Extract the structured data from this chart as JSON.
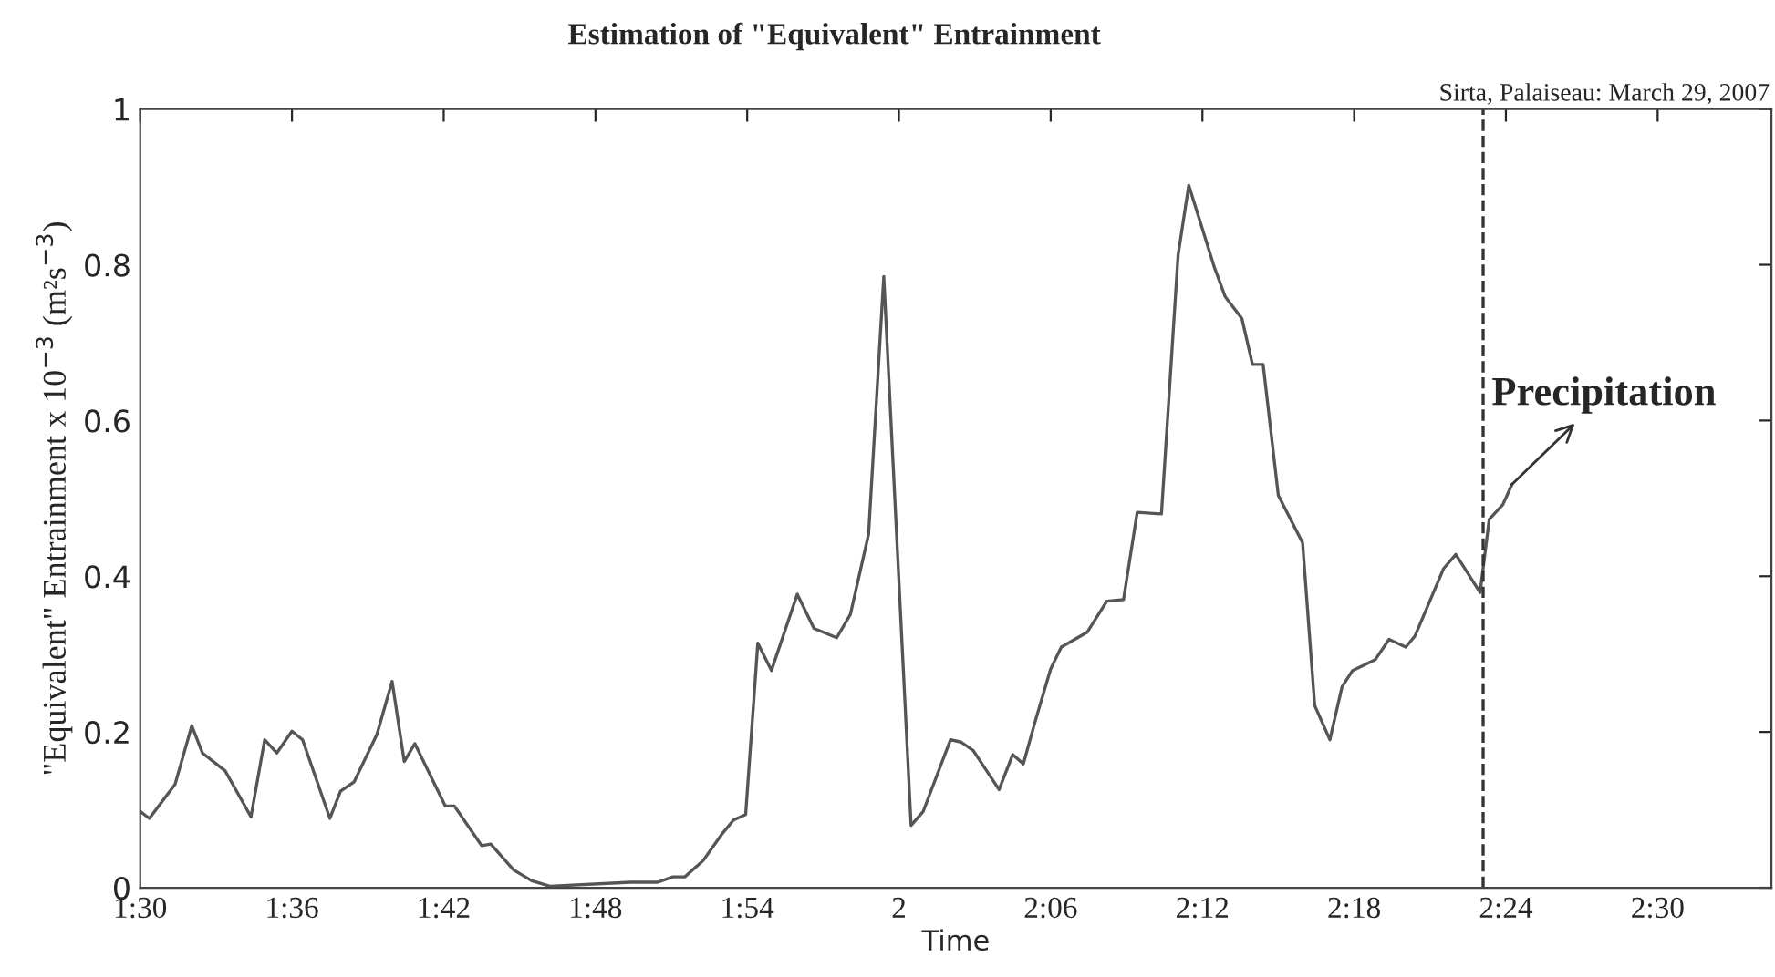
{
  "chart_data": {
    "type": "line",
    "title": "Estimation of \"Equivalent\" Entrainment",
    "subtitle": "Sirta, Palaiseau: March 29, 2007",
    "xlabel": "Time",
    "ylabel": "\"Equivalent\" Entrainment x 10$^{−3}$ (m²s$^{−3}$)",
    "series": [
      {
        "color": "#555555",
        "x": [
          1.5,
          1.506,
          1.523,
          1.534,
          1.541,
          1.556,
          1.573,
          1.582,
          1.59,
          1.6,
          1.607,
          1.625,
          1.632,
          1.641,
          1.656,
          1.666,
          1.674,
          1.681,
          1.701,
          1.707,
          1.725,
          1.731,
          1.746,
          1.758,
          1.77,
          1.823,
          1.841,
          1.851,
          1.859,
          1.871,
          1.883,
          1.891,
          1.899,
          1.907,
          1.916,
          1.933,
          1.944,
          1.959,
          1.968,
          1.98,
          1.99,
          2.008,
          2.016,
          2.034,
          2.041,
          2.049,
          2.066,
          2.075,
          2.082,
          2.09,
          2.1,
          2.107,
          2.124,
          2.137,
          2.148,
          2.157,
          2.173,
          2.184,
          2.191,
          2.208,
          2.215,
          2.226,
          2.233,
          2.24,
          2.25,
          2.266,
          2.274,
          2.284,
          2.292,
          2.299,
          2.314,
          2.323,
          2.334,
          2.34,
          2.359,
          2.367,
          2.383,
          2.389,
          2.398,
          2.404
        ],
        "values": [
          0.098,
          0.089,
          0.133,
          0.208,
          0.173,
          0.15,
          0.091,
          0.19,
          0.173,
          0.201,
          0.19,
          0.089,
          0.124,
          0.136,
          0.197,
          0.265,
          0.162,
          0.185,
          0.105,
          0.105,
          0.054,
          0.056,
          0.023,
          0.009,
          0.002,
          0.007,
          0.007,
          0.014,
          0.014,
          0.035,
          0.068,
          0.087,
          0.094,
          0.314,
          0.279,
          0.377,
          0.333,
          0.321,
          0.351,
          0.454,
          0.785,
          0.08,
          0.098,
          0.19,
          0.187,
          0.176,
          0.126,
          0.171,
          0.159,
          0.215,
          0.281,
          0.309,
          0.328,
          0.368,
          0.37,
          0.482,
          0.48,
          0.813,
          0.902,
          0.796,
          0.759,
          0.731,
          0.672,
          0.672,
          0.504,
          0.443,
          0.234,
          0.19,
          0.258,
          0.279,
          0.293,
          0.319,
          0.309,
          0.323,
          0.41,
          0.428,
          0.379,
          0.473,
          0.492,
          0.518
        ]
      }
    ],
    "xlim": [
      1.5,
      2.575
    ],
    "xticks": [
      {
        "value": 1.5,
        "label": "1:30"
      },
      {
        "value": 1.6,
        "label": "1:36"
      },
      {
        "value": 1.7,
        "label": "1:42"
      },
      {
        "value": 1.8,
        "label": "1:48"
      },
      {
        "value": 1.9,
        "label": "1:54"
      },
      {
        "value": 2.0,
        "label": "2"
      },
      {
        "value": 2.1,
        "label": "2:06"
      },
      {
        "value": 2.2,
        "label": "2:12"
      },
      {
        "value": 2.3,
        "label": "2:18"
      },
      {
        "value": 2.4,
        "label": "2:24"
      },
      {
        "value": 2.5,
        "label": "2:30"
      }
    ],
    "ylim": [
      0,
      1
    ],
    "yticks": [
      0,
      0.2,
      0.4,
      0.6,
      0.8,
      1
    ],
    "ref_lines": [
      {
        "axis": "x",
        "value": 2.385,
        "line_style": "dashed",
        "color": "#333333"
      }
    ],
    "annotations": [
      {
        "text": "Precipitation",
        "x": 2.404,
        "y": 0.518
      }
    ],
    "grid": false,
    "legend": false,
    "marker": "none",
    "line_style": "solid"
  }
}
